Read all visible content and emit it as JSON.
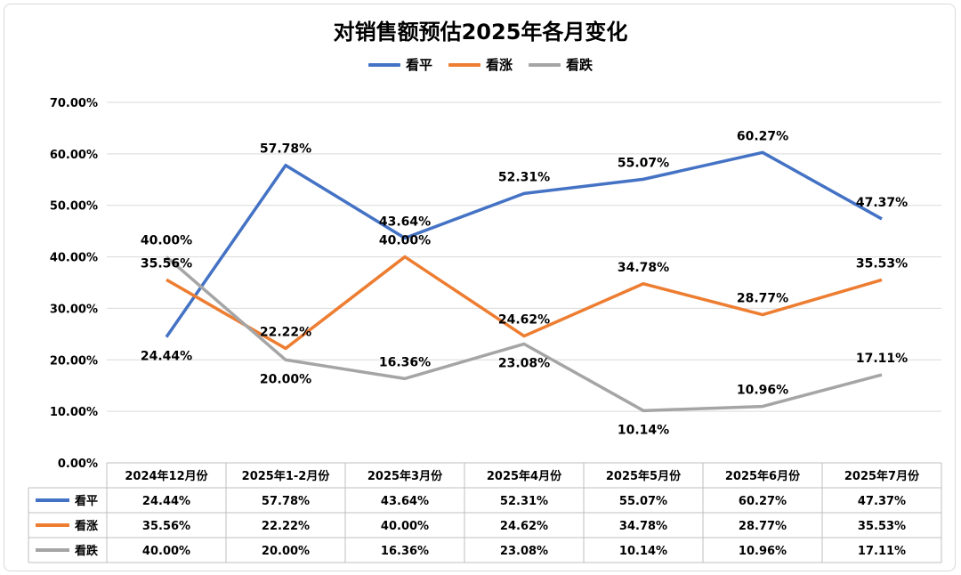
{
  "chart_data": {
    "type": "line",
    "title": "对销售额预估2025年各月变化",
    "categories": [
      "2024年12月份",
      "2025年1-2月份",
      "2025年3月份",
      "2025年4月份",
      "2025年5月份",
      "2025年6月份",
      "2025年7月份"
    ],
    "series": [
      {
        "name": "看平",
        "color": "#4472c4",
        "values": [
          24.44,
          57.78,
          43.64,
          52.31,
          55.07,
          60.27,
          47.37
        ]
      },
      {
        "name": "看涨",
        "color": "#ed7d31",
        "values": [
          35.56,
          22.22,
          40.0,
          24.62,
          34.78,
          28.77,
          35.53
        ]
      },
      {
        "name": "看跌",
        "color": "#a5a5a5",
        "values": [
          40.0,
          20.0,
          16.36,
          23.08,
          10.14,
          10.96,
          17.11
        ]
      }
    ],
    "ylim": [
      0,
      70
    ],
    "yticks": [
      0,
      10,
      20,
      30,
      40,
      50,
      60,
      70
    ],
    "value_format": "percent_2dp",
    "legend_position": "top",
    "grid": true,
    "data_table": true
  }
}
